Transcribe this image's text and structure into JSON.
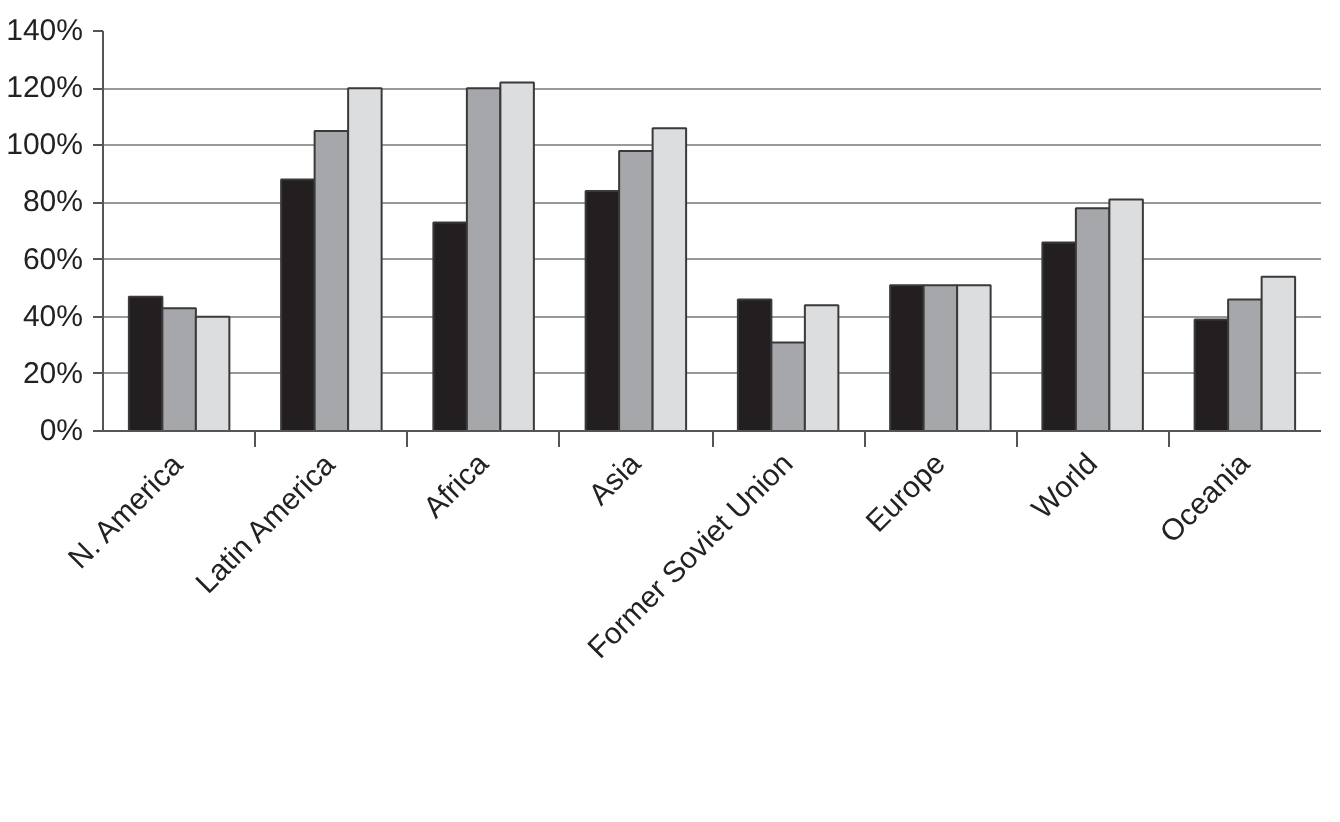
{
  "chart_data": {
    "type": "bar",
    "categories": [
      "N. America",
      "Latin America",
      "Africa",
      "Asia",
      "Former Soviet Union",
      "Europe",
      "World",
      "Oceania"
    ],
    "series": [
      {
        "color": "#231f20",
        "values": [
          47,
          88,
          73,
          84,
          46,
          51,
          66,
          39
        ]
      },
      {
        "color": "#a6a7aa",
        "values": [
          43,
          105,
          120,
          98,
          31,
          51,
          78,
          46
        ]
      },
      {
        "color": "#dcdddf",
        "values": [
          40,
          120,
          122,
          106,
          44,
          51,
          81,
          54
        ]
      }
    ],
    "ylim": [
      0,
      140
    ],
    "yticks": [
      {
        "value": 0,
        "label": "0%"
      },
      {
        "value": 20,
        "label": "20%"
      },
      {
        "value": 40,
        "label": "40%"
      },
      {
        "value": 60,
        "label": "60%"
      },
      {
        "value": 80,
        "label": "80%"
      },
      {
        "value": 100,
        "label": "100%"
      },
      {
        "value": 120,
        "label": "120%"
      },
      {
        "value": 140,
        "label": "140%"
      }
    ],
    "grid": "y"
  }
}
